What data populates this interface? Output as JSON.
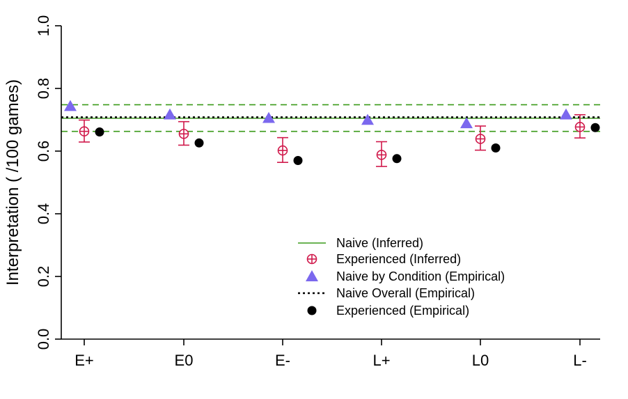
{
  "chart_data": {
    "type": "scatter",
    "categories": [
      "E+",
      "E0",
      "E-",
      "L+",
      "L0",
      "L-"
    ],
    "ylabel": "Interpretation ( /100 games)",
    "xlabel": "",
    "ylim": [
      0,
      1.0
    ],
    "yticks": [
      "0.0",
      "0.2",
      "0.4",
      "0.6",
      "0.8",
      "1.0"
    ],
    "grid": false,
    "legend_position": "bottom-center",
    "naive_inferred": {
      "name": "Naive (Inferred)",
      "value": 0.705,
      "ci": [
        0.663,
        0.748
      ],
      "color": "#3a9a1a"
    },
    "experienced_inferred": {
      "name": "Experienced (Inferred)",
      "color": "#d0194b",
      "values": [
        0.663,
        0.655,
        0.602,
        0.588,
        0.639,
        0.677
      ],
      "lower": [
        0.629,
        0.619,
        0.564,
        0.551,
        0.603,
        0.642
      ],
      "upper": [
        0.699,
        0.694,
        0.643,
        0.63,
        0.68,
        0.716
      ]
    },
    "naive_by_condition": {
      "name": "Naive by Condition (Empirical)",
      "color": "#7b68ee",
      "values": [
        0.743,
        0.716,
        0.705,
        0.699,
        0.688,
        0.716
      ]
    },
    "naive_overall": {
      "name": "Naive Overall (Empirical)",
      "value": 0.708,
      "color": "#000000"
    },
    "experienced_empirical": {
      "name": "Experienced (Empirical)",
      "color": "#000000",
      "values": [
        0.661,
        0.626,
        0.57,
        0.576,
        0.61,
        0.675
      ]
    }
  }
}
